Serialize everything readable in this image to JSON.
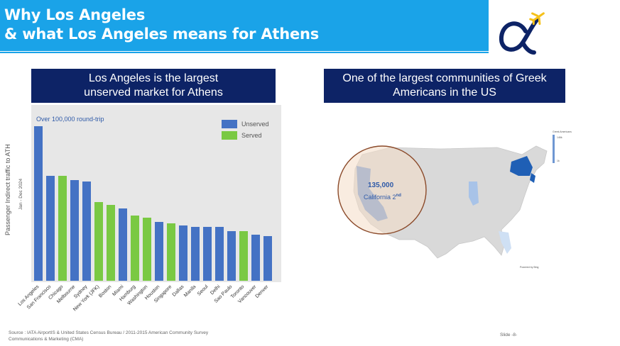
{
  "header": {
    "title_line1": "Why Los Angeles",
    "title_line2": "& what Los Angeles means for Athens"
  },
  "logo": {
    "icon": "alpha-plane-logo"
  },
  "left_panel": {
    "title_line1": "Los Angeles is the largest",
    "title_line2": "unserved market for Athens"
  },
  "right_panel": {
    "title_line1": "One of the largest communities of Greek",
    "title_line2": "Americans in the US",
    "map_value": "135,000",
    "map_state": "California 2",
    "map_state_sup": "nd",
    "map_legend_title": "Greek Americans",
    "map_legend_max": "146k",
    "map_legend_min": "1k",
    "map_footnote": "Powered by Bing"
  },
  "chart_data": {
    "type": "bar",
    "annotation": "Over 100,000 round-trip",
    "ylabel": "Passenger Indirect traffic to ATH",
    "ylabel_sub": "Jan - Dec 2024",
    "legend": [
      {
        "name": "Unserved",
        "color": "#4472c4"
      },
      {
        "name": "Served",
        "color": "#7ac943"
      }
    ],
    "categories": [
      "Los Angeles",
      "San Francisco",
      "Chicago",
      "Melbourne",
      "Sydney",
      "New York (JFK)",
      "Boston",
      "Miami",
      "Hamburg",
      "Washington",
      "Houston",
      "Singapore",
      "Dallas",
      "Manila",
      "Seoul",
      "Delhi",
      "Sao Paulo",
      "Toronto",
      "Vancouver",
      "Denver"
    ],
    "status": [
      "Unserved",
      "Unserved",
      "Served",
      "Unserved",
      "Unserved",
      "Served",
      "Served",
      "Unserved",
      "Served",
      "Served",
      "Unserved",
      "Served",
      "Unserved",
      "Unserved",
      "Unserved",
      "Unserved",
      "Unserved",
      "Served",
      "Unserved",
      "Unserved"
    ],
    "values": [
      100,
      68,
      68,
      65,
      64,
      51,
      49,
      47,
      42,
      41,
      38,
      37,
      36,
      35,
      35,
      35,
      32,
      32,
      30,
      29
    ],
    "ylim": [
      0,
      100
    ],
    "grid": false
  },
  "footer": {
    "source_line1": "Source : IATA AirportIS & United States Census Bureau / 2011-2015 American Community Survey",
    "source_line2": "Communications & Marketing (CMA)",
    "slide": "Slide -8-"
  }
}
